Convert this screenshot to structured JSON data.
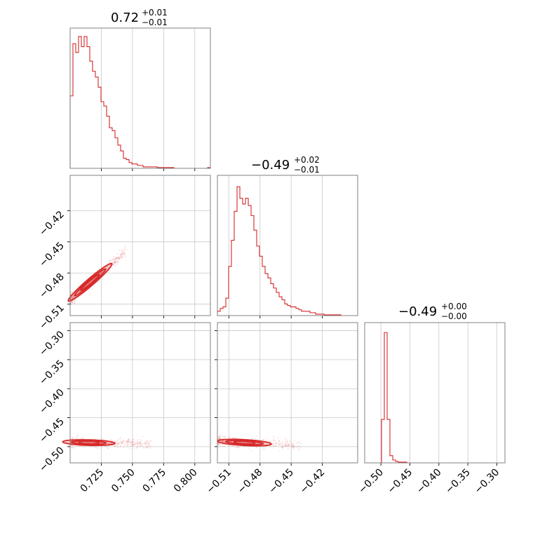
{
  "chart_data": {
    "type": "corner",
    "color": "#d62728",
    "parameters": [
      {
        "title_value": "0.72",
        "title_plus": "+0.01",
        "title_minus": "−0.01",
        "range": [
          0.7,
          0.8125
        ]
      },
      {
        "title_value": "−0.49",
        "title_plus": "+0.02",
        "title_minus": "−0.01",
        "range": [
          -0.521,
          -0.386
        ]
      },
      {
        "title_value": "−0.49",
        "title_plus": "+0.00",
        "title_minus": "−0.00",
        "range": [
          -0.528,
          -0.286
        ]
      }
    ],
    "ticks": {
      "p0": [
        0.725,
        0.75,
        0.775,
        0.8
      ],
      "p0_labels": [
        "0.725",
        "0.750",
        "0.775",
        "0.800"
      ],
      "p1": [
        -0.51,
        -0.48,
        -0.45,
        -0.42
      ],
      "p1_labels": [
        "−0.51",
        "−0.48",
        "−0.45",
        "−0.42"
      ],
      "p2": [
        -0.5,
        -0.45,
        -0.4,
        -0.35,
        -0.3
      ],
      "p2_labels": [
        "−0.50",
        "−0.45",
        "−0.40",
        "−0.35",
        "−0.30"
      ]
    },
    "hist_p0": {
      "edges_start": 0.7,
      "bin_width": 0.00225,
      "heights": [
        0.5,
        0.86,
        0.8,
        0.91,
        0.84,
        0.91,
        0.84,
        0.74,
        0.67,
        0.63,
        0.56,
        0.46,
        0.43,
        0.36,
        0.28,
        0.26,
        0.21,
        0.16,
        0.12,
        0.07,
        0.06,
        0.04,
        0.03,
        0.03,
        0.02,
        0.02,
        0.01,
        0.01,
        0.01,
        0.01,
        0.01,
        0.005,
        0.005,
        0.005,
        0.005,
        0.005,
        0.005,
        0,
        0,
        0,
        0,
        0,
        0,
        0,
        0,
        0,
        0,
        0,
        0,
        0.005
      ]
    },
    "hist_p1": {
      "edges_start": -0.521,
      "bin_width": 0.0027,
      "heights": [
        0.03,
        0.05,
        0.06,
        0.12,
        0.34,
        0.52,
        0.72,
        0.89,
        0.81,
        0.77,
        0.81,
        0.76,
        0.69,
        0.59,
        0.48,
        0.41,
        0.34,
        0.29,
        0.26,
        0.22,
        0.19,
        0.16,
        0.13,
        0.11,
        0.08,
        0.07,
        0.06,
        0.06,
        0.05,
        0.04,
        0.03,
        0.03,
        0.03,
        0.02,
        0.02,
        0.01,
        0.01,
        0.01,
        0.005,
        0.005,
        0.005,
        0.005,
        0.005,
        0.005,
        0,
        0,
        0,
        0,
        0,
        0
      ]
    },
    "hist_p2": {
      "edges_start": -0.528,
      "bin_width": 0.00484,
      "heights": [
        0,
        0,
        0,
        0,
        0,
        0,
        0.3,
        0.9,
        0.3,
        0.05,
        0.02,
        0.01,
        0.005,
        0.005,
        0.005,
        0,
        0,
        0,
        0,
        0,
        0,
        0,
        0,
        0,
        0,
        0,
        0,
        0,
        0,
        0,
        0,
        0,
        0,
        0,
        0,
        0,
        0,
        0,
        0,
        0,
        0,
        0,
        0,
        0,
        0,
        0,
        0,
        0,
        0,
        0
      ]
    },
    "contour_p0_p1": {
      "center": [
        0.716,
        -0.489
      ],
      "slope": 1.03,
      "len": [
        0.0075,
        0.0125,
        0.0175
      ],
      "wid": [
        0.0012,
        0.0022,
        0.0034
      ],
      "cloud": {
        "x": [
          0.7,
          0.745
        ],
        "spread": 0.006
      }
    },
    "contour_p0_p2": {
      "center": [
        0.715,
        -0.493
      ],
      "slope": -0.06,
      "len": [
        0.008,
        0.014,
        0.021
      ],
      "wid": [
        0.0015,
        0.0028,
        0.0048
      ],
      "cloud": {
        "x": [
          0.7,
          0.765
        ],
        "spread": 0.009
      }
    },
    "contour_p1_p2": {
      "center": [
        -0.495,
        -0.493
      ],
      "slope": -0.1,
      "len": [
        0.01,
        0.018,
        0.026
      ],
      "wid": [
        0.0016,
        0.003,
        0.005
      ],
      "cloud": {
        "x": [
          -0.521,
          -0.44
        ],
        "spread": 0.009
      }
    }
  }
}
